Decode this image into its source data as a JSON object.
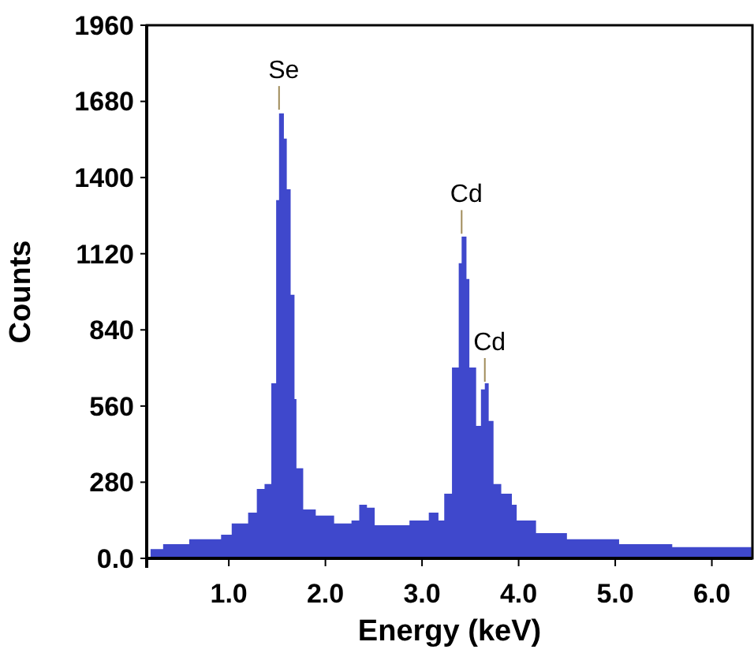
{
  "chart_data": {
    "type": "area",
    "xlabel": "Energy (keV)",
    "ylabel": "Counts",
    "xlim": [
      0.15,
      6.42
    ],
    "ylim": [
      0,
      1960
    ],
    "xticks": [
      {
        "value": 1,
        "label": "1.0"
      },
      {
        "value": 2,
        "label": "2.0"
      },
      {
        "value": 3,
        "label": "3.0"
      },
      {
        "value": 4,
        "label": "4.0"
      },
      {
        "value": 5,
        "label": "5.0"
      },
      {
        "value": 6,
        "label": "6.0"
      }
    ],
    "yticks": [
      {
        "value": 0,
        "label": "0.0"
      },
      280,
      560,
      840,
      1120,
      1400,
      1680,
      1960
    ],
    "grid": false,
    "annotations": [
      {
        "text": "Se",
        "x": 1.52,
        "y": 1632
      },
      {
        "text": "Cd",
        "x": 3.41,
        "y": 1176
      },
      {
        "text": "Cd",
        "x": 3.65,
        "y": 632
      }
    ],
    "series": [
      {
        "color": "#3f48cc",
        "x": [
          0.19,
          0.32,
          0.59,
          0.92,
          1.03,
          1.2,
          1.29,
          1.37,
          1.44,
          1.49,
          1.52,
          1.57,
          1.6,
          1.64,
          1.68,
          1.7,
          1.77,
          1.9,
          2.09,
          2.27,
          2.35,
          2.43,
          2.51,
          2.76,
          2.87,
          3.07,
          3.17,
          3.23,
          3.31,
          3.38,
          3.41,
          3.46,
          3.49,
          3.56,
          3.61,
          3.65,
          3.69,
          3.74,
          3.82,
          3.93,
          3.98,
          4.18,
          4.5,
          5.04,
          5.59,
          6.41
        ],
        "values": [
          34,
          52,
          70,
          87,
          128,
          168,
          255,
          273,
          644,
          1317,
          1636,
          1543,
          1357,
          969,
          586,
          331,
          180,
          157,
          128,
          139,
          197,
          186,
          122,
          122,
          139,
          168,
          139,
          238,
          702,
          1085,
          1183,
          1027,
          702,
          487,
          621,
          644,
          505,
          273,
          238,
          197,
          139,
          93,
          70,
          52,
          41,
          52
        ]
      }
    ]
  }
}
